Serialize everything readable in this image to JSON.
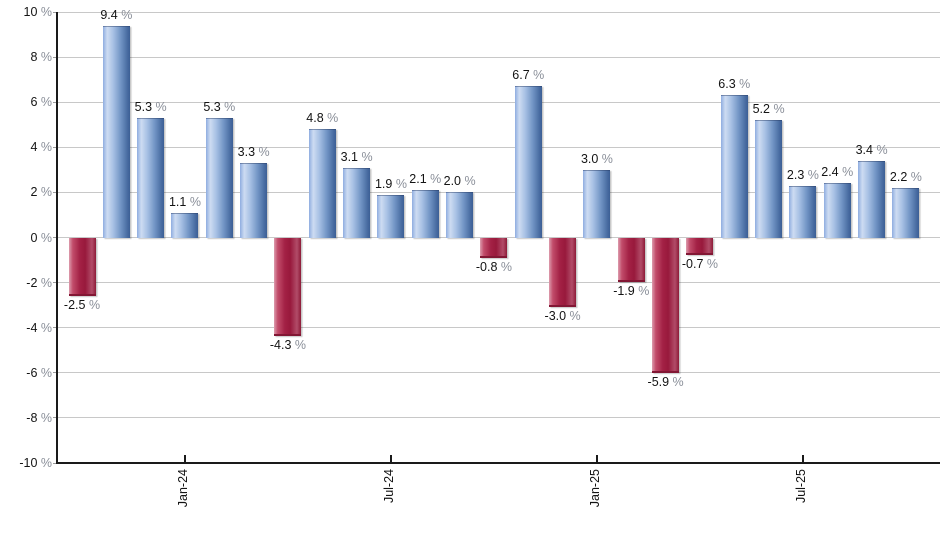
{
  "chart_data": {
    "type": "bar",
    "title": "",
    "unit": "%",
    "ylim": [
      -10,
      10
    ],
    "y_tick_step": 2,
    "grid": true,
    "legend": null,
    "y_tick_labels": [
      "10 %",
      "8 %",
      "6 %",
      "4 %",
      "2 %",
      "0 %",
      "-2 %",
      "-4 %",
      "-6 %",
      "-8 %",
      "-10 %"
    ],
    "bars": [
      {
        "value": -2.5,
        "label": "-2.5 %"
      },
      {
        "value": 9.4,
        "label": "9.4 %"
      },
      {
        "value": 5.3,
        "label": "5.3 %"
      },
      {
        "value": 1.1,
        "label": "1.1 %"
      },
      {
        "value": 5.3,
        "label": "5.3 %"
      },
      {
        "value": 3.3,
        "label": "3.3 %"
      },
      {
        "value": -4.3,
        "label": "-4.3 %"
      },
      {
        "value": 4.8,
        "label": "4.8 %"
      },
      {
        "value": 3.1,
        "label": "3.1 %"
      },
      {
        "value": 1.9,
        "label": "1.9 %"
      },
      {
        "value": 2.1,
        "label": "2.1 %"
      },
      {
        "value": 2.0,
        "label": "2.0 %"
      },
      {
        "value": -0.8,
        "label": "-0.8 %"
      },
      {
        "value": 6.7,
        "label": "6.7 %"
      },
      {
        "value": -3.0,
        "label": "-3.0 %"
      },
      {
        "value": 3.0,
        "label": "3.0 %"
      },
      {
        "value": -1.9,
        "label": "-1.9 %"
      },
      {
        "value": -5.9,
        "label": "-5.9 %"
      },
      {
        "value": -0.7,
        "label": "-0.7 %"
      },
      {
        "value": 6.3,
        "label": "6.3 %"
      },
      {
        "value": 5.2,
        "label": "5.2 %"
      },
      {
        "value": 2.3,
        "label": "2.3 %"
      },
      {
        "value": 2.4,
        "label": "2.4 %"
      },
      {
        "value": 3.4,
        "label": "3.4 %"
      },
      {
        "value": 2.2,
        "label": "2.2 %"
      }
    ],
    "x_ticks": [
      {
        "bar_index": 3,
        "label": "Jan-24"
      },
      {
        "bar_index": 9,
        "label": "Jul-24"
      },
      {
        "bar_index": 15,
        "label": "Jan-25"
      },
      {
        "bar_index": 21,
        "label": "Jul-25"
      }
    ],
    "colors": {
      "positive_bar": "#6f94c6",
      "negative_bar": "#a32145",
      "grid": "#c8c8c8",
      "axis": "#1a1a1a",
      "value_number": "#141414",
      "value_percent": "#8a8f99"
    }
  }
}
